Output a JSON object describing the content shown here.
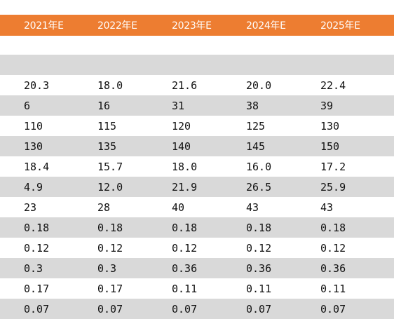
{
  "table": {
    "headers": [
      "2021年E",
      "2022年E",
      "2023年E",
      "2024年E",
      "2025年E"
    ],
    "rows": [
      [
        "",
        "",
        "",
        "",
        ""
      ],
      [
        "",
        "",
        "",
        "",
        ""
      ],
      [
        "20.3",
        "18.0",
        "21.6",
        "20.0",
        "22.4"
      ],
      [
        "6",
        "16",
        "31",
        "38",
        "39"
      ],
      [
        "110",
        "115",
        "120",
        "125",
        "130"
      ],
      [
        "130",
        "135",
        "140",
        "145",
        "150"
      ],
      [
        "18.4",
        "15.7",
        "18.0",
        "16.0",
        "17.2"
      ],
      [
        "4.9",
        "12.0",
        "21.9",
        "26.5",
        "25.9"
      ],
      [
        "23",
        "28",
        "40",
        "43",
        "43"
      ],
      [
        "0.18",
        "0.18",
        "0.18",
        "0.18",
        "0.18"
      ],
      [
        "0.12",
        "0.12",
        "0.12",
        "0.12",
        "0.12"
      ],
      [
        "0.3",
        "0.3",
        "0.36",
        "0.36",
        "0.36"
      ],
      [
        "0.17",
        "0.17",
        "0.11",
        "0.11",
        "0.11"
      ],
      [
        "0.07",
        "0.07",
        "0.07",
        "0.07",
        "0.07"
      ]
    ],
    "colors": {
      "header_bg": "#ed7d31",
      "header_text": "#ffffff",
      "shaded_row": "#d9d9d9"
    }
  }
}
